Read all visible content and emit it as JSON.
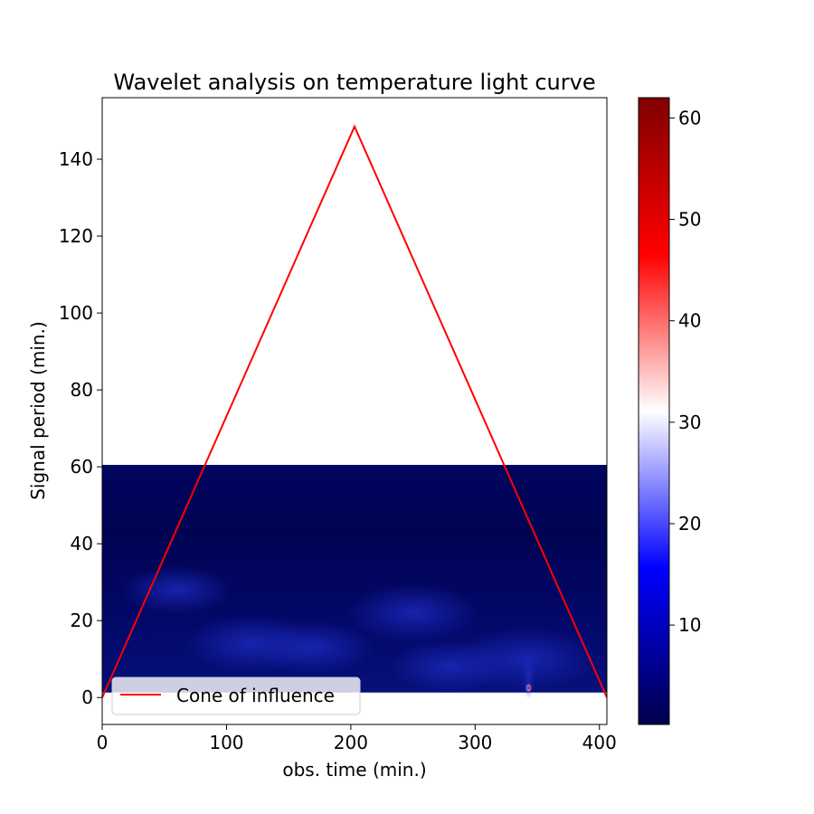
{
  "chart_data": {
    "type": "heatmap",
    "title": "Wavelet analysis on temperature light curve",
    "xlabel": "obs. time (min.)",
    "ylabel": "Signal period (min.)",
    "xlim": [
      0,
      406
    ],
    "ylim": [
      -7,
      156
    ],
    "x_ticks": [
      0,
      100,
      200,
      300,
      400
    ],
    "y_ticks": [
      0,
      20,
      40,
      60,
      80,
      100,
      120,
      140
    ],
    "heatmap": {
      "colormap": "seismic",
      "x_range": [
        0,
        406
      ],
      "period_range": [
        1.3,
        60.5
      ],
      "hotspot": {
        "x": 343,
        "period": 2.5,
        "value": 62
      },
      "weak_patches": [
        {
          "x": 120,
          "period": 14,
          "value": 6
        },
        {
          "x": 170,
          "period": 13,
          "value": 5
        },
        {
          "x": 250,
          "period": 22,
          "value": 6
        },
        {
          "x": 280,
          "period": 8,
          "value": 5
        },
        {
          "x": 340,
          "period": 10,
          "value": 7
        },
        {
          "x": 60,
          "period": 28,
          "value": 4
        }
      ]
    },
    "series": [
      {
        "name": "Cone of influence",
        "color": "#ff0000",
        "x": [
          0,
          203,
          406
        ],
        "y": [
          0,
          148.5,
          0
        ]
      }
    ],
    "legend": {
      "placement": "lower-left"
    },
    "colorbar": {
      "range": [
        0.2,
        62
      ],
      "ticks": [
        10,
        20,
        30,
        40,
        50,
        60
      ]
    },
    "grid": false
  }
}
